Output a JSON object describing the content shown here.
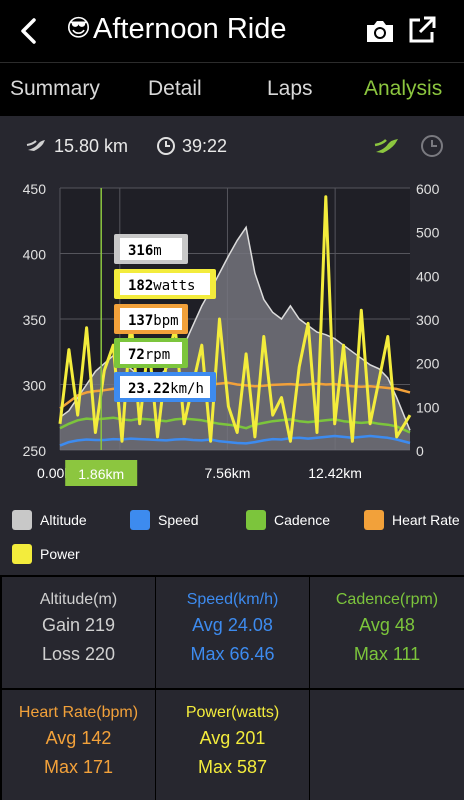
{
  "header": {
    "emoji": "😎",
    "title": "Afternoon Ride"
  },
  "tabs": [
    {
      "label": "Summary"
    },
    {
      "label": "Detail"
    },
    {
      "label": "Laps"
    },
    {
      "label": "Analysis"
    }
  ],
  "stats": {
    "distance": "15.80 km",
    "time": "39:22"
  },
  "colors": {
    "accent": "#8cc63f",
    "altitude": "#c8c8c8",
    "speed": "#3d8bef",
    "cadence": "#7cc53c",
    "heart_rate": "#f2a13a",
    "power": "#f3ec3c",
    "panel": "#27272f"
  },
  "cursor": {
    "x_label": "1.86km",
    "readouts": [
      {
        "value": "316",
        "unit": "m",
        "series": "altitude"
      },
      {
        "value": "182",
        "unit": "watts",
        "series": "power"
      },
      {
        "value": "137",
        "unit": "bpm",
        "series": "heart_rate"
      },
      {
        "value": "72",
        "unit": "rpm",
        "series": "cadence"
      },
      {
        "value": "23.22",
        "unit": "km/h",
        "series": "speed"
      }
    ]
  },
  "chart_data": {
    "type": "line",
    "x": [
      0,
      0.4,
      0.8,
      1.2,
      1.6,
      2.0,
      2.4,
      2.8,
      3.2,
      3.6,
      4.0,
      4.4,
      4.8,
      5.2,
      5.6,
      6.0,
      6.4,
      6.8,
      7.2,
      7.6,
      8.0,
      8.4,
      8.8,
      9.2,
      9.6,
      10.0,
      10.4,
      10.8,
      11.2,
      11.6,
      12.0,
      12.4,
      12.8,
      13.2,
      13.6,
      14.0,
      14.4,
      14.8,
      15.2,
      15.8
    ],
    "xlim": [
      0,
      15.8
    ],
    "x_ticks": [
      "0.00km",
      "",
      "7.56km",
      "12.42km"
    ],
    "x_tick_values": [
      0,
      2.7,
      7.56,
      12.42
    ],
    "y_left": {
      "ticks": [
        "450",
        "400",
        "350",
        "300",
        "250"
      ],
      "tick_values": [
        450,
        400,
        350,
        300,
        250
      ],
      "range": [
        250,
        450
      ]
    },
    "y_right": {
      "ticks": [
        "600",
        "500",
        "400",
        "300",
        "200",
        "100",
        "0"
      ],
      "tick_values": [
        600,
        500,
        400,
        300,
        200,
        100,
        0
      ],
      "range": [
        0,
        600
      ]
    },
    "series": [
      {
        "name": "Altitude",
        "axis": "left",
        "fill": true,
        "values": [
          275,
          280,
          290,
          300,
          310,
          316,
          322,
          318,
          312,
          306,
          300,
          305,
          312,
          320,
          330,
          345,
          360,
          372,
          385,
          398,
          410,
          420,
          385,
          365,
          355,
          350,
          360,
          350,
          345,
          340,
          338,
          335,
          330,
          325,
          320,
          315,
          312,
          305,
          290,
          265
        ]
      },
      {
        "name": "Speed",
        "axis": "right",
        "values": [
          10,
          18,
          22,
          24,
          23,
          23,
          25,
          24,
          26,
          25,
          24,
          23,
          22,
          24,
          25,
          23,
          22,
          24,
          20,
          18,
          16,
          15,
          18,
          22,
          25,
          24,
          27,
          28,
          26,
          28,
          30,
          32,
          30,
          28,
          30,
          32,
          30,
          28,
          24,
          16
        ]
      },
      {
        "name": "Cadence",
        "axis": "right",
        "values": [
          50,
          60,
          68,
          72,
          70,
          72,
          74,
          70,
          68,
          72,
          70,
          68,
          66,
          70,
          72,
          70,
          68,
          64,
          60,
          58,
          55,
          50,
          58,
          62,
          66,
          68,
          70,
          66,
          64,
          66,
          68,
          70,
          66,
          64,
          62,
          64,
          60,
          58,
          54,
          40
        ]
      },
      {
        "name": "Heart Rate",
        "axis": "right",
        "values": [
          95,
          110,
          125,
          132,
          135,
          137,
          140,
          142,
          140,
          141,
          143,
          142,
          141,
          143,
          144,
          146,
          148,
          150,
          152,
          154,
          150,
          148,
          146,
          147,
          149,
          150,
          151,
          149,
          150,
          152,
          150,
          151,
          148,
          146,
          145,
          146,
          144,
          142,
          140,
          132
        ]
      },
      {
        "name": "Power",
        "axis": "right",
        "values": [
          60,
          230,
          80,
          280,
          40,
          182,
          240,
          20,
          300,
          60,
          250,
          30,
          200,
          280,
          60,
          150,
          240,
          20,
          300,
          100,
          40,
          220,
          30,
          260,
          80,
          120,
          20,
          190,
          290,
          40,
          580,
          60,
          240,
          20,
          320,
          60,
          160,
          260,
          30,
          80
        ]
      }
    ],
    "cursor_x": 1.86,
    "grid": true
  },
  "legend": [
    {
      "label": "Altitude",
      "color": "#c8c8c8"
    },
    {
      "label": "Speed",
      "color": "#3d8bef"
    },
    {
      "label": "Cadence",
      "color": "#7cc53c"
    },
    {
      "label": "Heart Rate",
      "color": "#f2a13a"
    },
    {
      "label": "Power",
      "color": "#f3ec3c"
    }
  ],
  "summary": {
    "altitude": {
      "title": "Altitude(m)",
      "line1": "Gain 219",
      "line2": "Loss 220",
      "color": "#d0d0d0"
    },
    "speed": {
      "title": "Speed(km/h)",
      "line1": "Avg 24.08",
      "line2": "Max 66.46",
      "color": "#3d8bef"
    },
    "cadence": {
      "title": "Cadence(rpm)",
      "line1": "Avg 48",
      "line2": "Max 111",
      "color": "#7cc53c"
    },
    "heart_rate": {
      "title": "Heart Rate(bpm)",
      "line1": "Avg 142",
      "line2": "Max 171",
      "color": "#f2a13a"
    },
    "power": {
      "title": "Power(watts)",
      "line1": "Avg 201",
      "line2": "Max 587",
      "color": "#f3ec3c"
    }
  }
}
